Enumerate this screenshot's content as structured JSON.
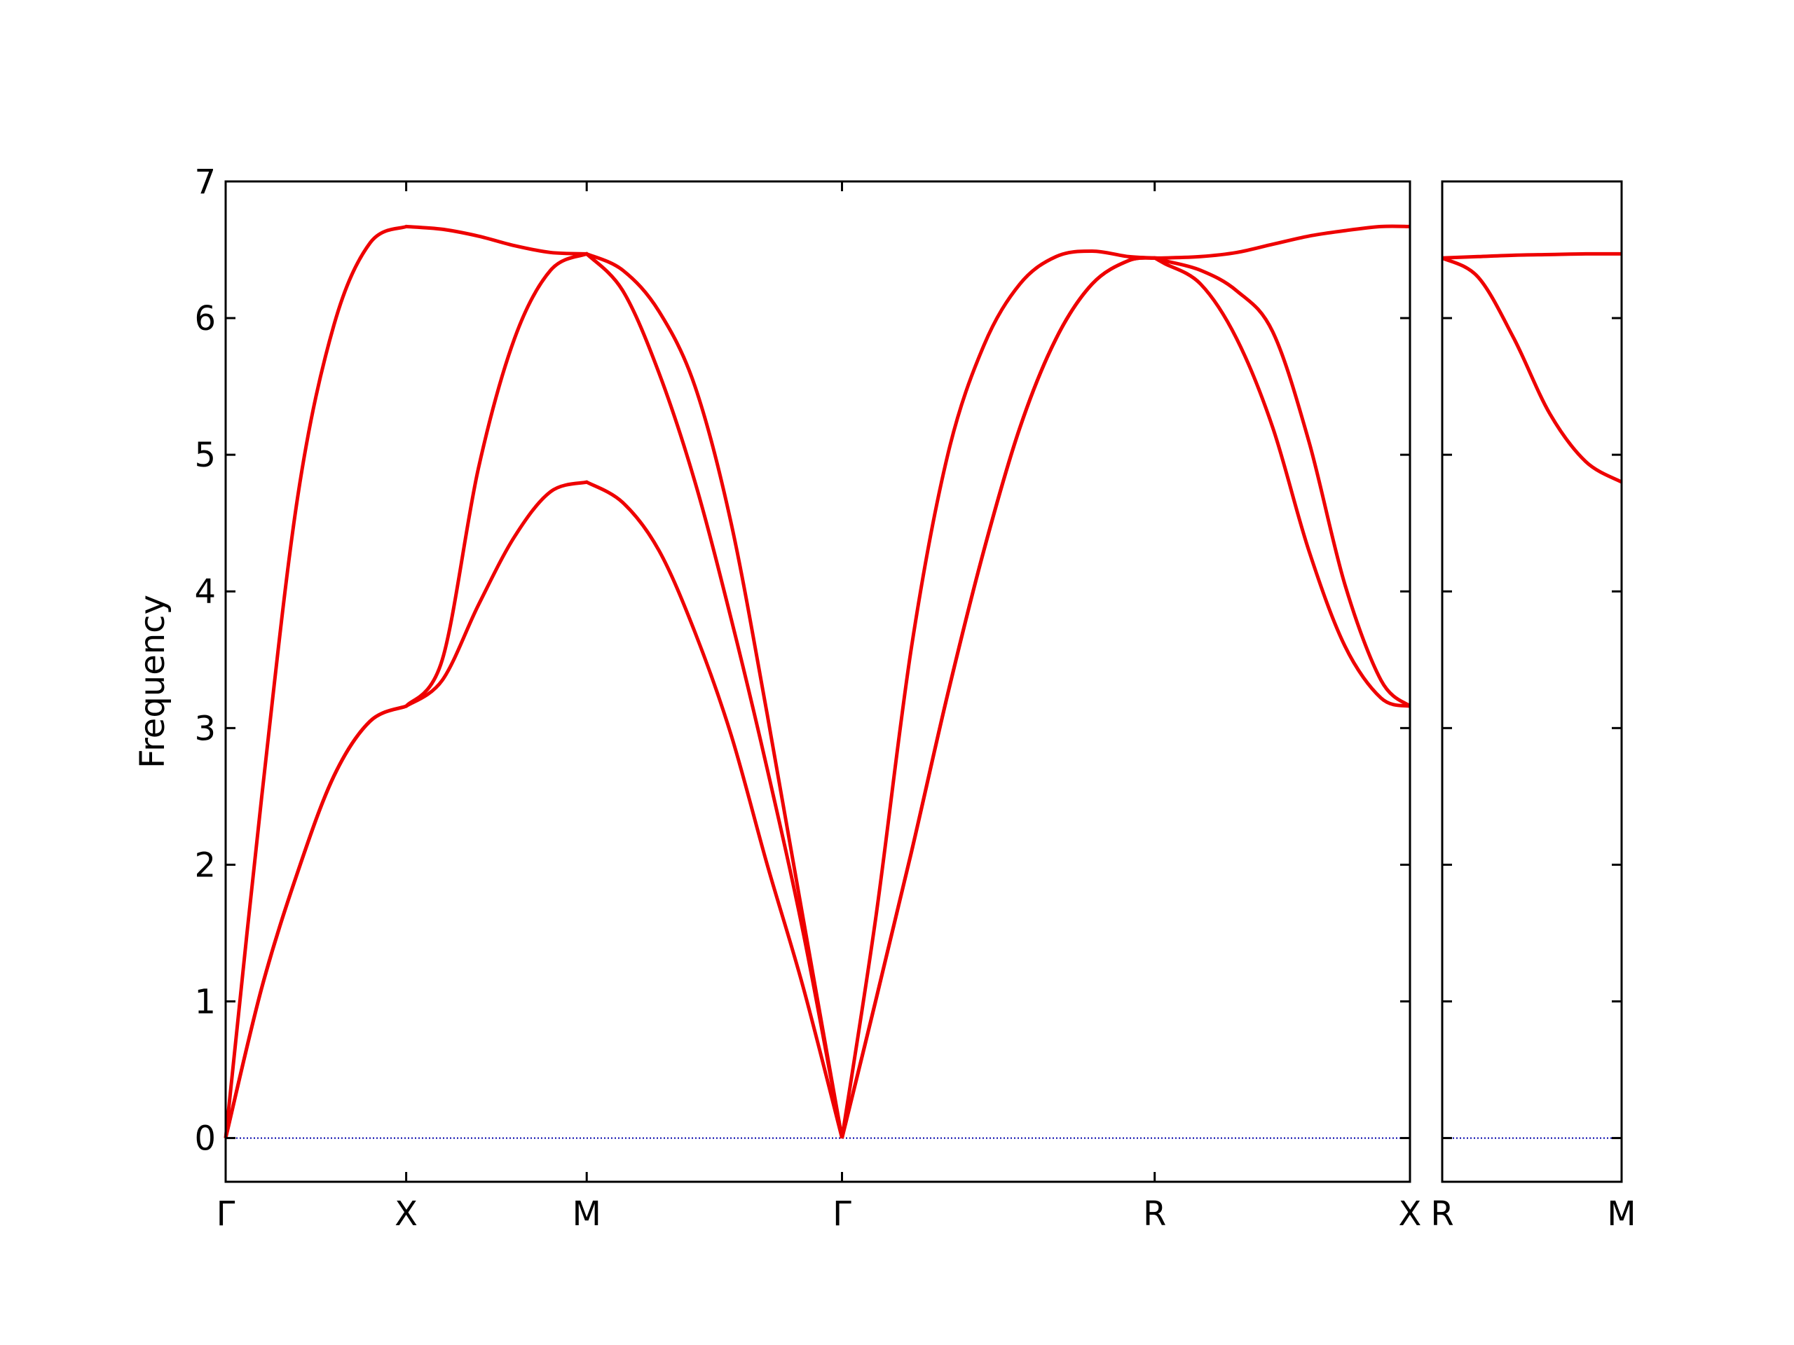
{
  "chart_data": [
    {
      "type": "line",
      "ylabel": "Frequency",
      "x": [
        0,
        0.1,
        0.2,
        0.3,
        0.4,
        0.5,
        0.6,
        0.7,
        0.8,
        0.9,
        1.0,
        1.1,
        1.2,
        1.3,
        1.4,
        1.5,
        1.6,
        1.7071,
        1.8,
        1.9,
        2.0,
        2.1,
        2.2,
        2.3,
        2.4,
        2.5,
        2.5731,
        2.6,
        2.7,
        2.8,
        2.9,
        3.0,
        3.1,
        3.2,
        3.2802
      ],
      "series": [
        {
          "color": "#ee0000",
          "values": [
            0,
            1.1,
            1.95,
            2.65,
            3.05,
            3.16,
            3.35,
            3.9,
            4.4,
            4.73,
            4.8,
            4.65,
            4.3,
            3.7,
            2.95,
            2.0,
            1.1,
            0,
            1.0,
            2.1,
            3.25,
            4.3,
            5.2,
            5.85,
            6.25,
            6.42,
            6.44,
            6.4,
            6.25,
            5.85,
            5.2,
            4.3,
            3.6,
            3.22,
            3.16
          ]
        },
        {
          "color": "#ee0000",
          "values": [
            0,
            1.1,
            1.95,
            2.65,
            3.05,
            3.16,
            3.5,
            4.9,
            5.85,
            6.35,
            6.47,
            6.2,
            5.6,
            4.8,
            3.8,
            2.7,
            1.5,
            0,
            1.0,
            2.1,
            3.25,
            4.3,
            5.2,
            5.85,
            6.25,
            6.42,
            6.44,
            6.42,
            6.35,
            6.2,
            5.9,
            5.1,
            4.05,
            3.35,
            3.16
          ]
        },
        {
          "color": "#ee0000",
          "values": [
            0,
            2.5,
            4.7,
            5.95,
            6.55,
            6.67,
            6.65,
            6.6,
            6.53,
            6.48,
            6.47,
            6.35,
            6.05,
            5.5,
            4.5,
            3.1,
            1.6,
            0,
            1.6,
            3.6,
            5.0,
            5.8,
            6.25,
            6.45,
            6.49,
            6.45,
            6.44,
            6.44,
            6.45,
            6.48,
            6.54,
            6.6,
            6.64,
            6.67,
            6.67
          ]
        }
      ],
      "hlines": [
        {
          "value": 0,
          "color": "#0000aa"
        }
      ],
      "xlim": [
        0,
        3.2802
      ],
      "xticks": [
        {
          "value": 0,
          "label": "Γ"
        },
        {
          "value": 0.5,
          "label": "X"
        },
        {
          "value": 1.0,
          "label": "M"
        },
        {
          "value": 1.7071,
          "label": "Γ"
        },
        {
          "value": 2.5731,
          "label": "R"
        },
        {
          "value": 3.2802,
          "label": "X"
        }
      ],
      "ylim": [
        -0.32,
        7
      ],
      "yticks": [
        0,
        1,
        2,
        3,
        4,
        5,
        6,
        7
      ]
    },
    {
      "type": "line",
      "x": [
        0,
        0.1,
        0.2,
        0.3,
        0.4,
        0.5
      ],
      "series": [
        {
          "color": "#ee0000",
          "values": [
            6.44,
            6.3,
            5.85,
            5.3,
            4.95,
            4.8
          ]
        },
        {
          "color": "#ee0000",
          "values": [
            6.44,
            6.45,
            6.46,
            6.465,
            6.47,
            6.47
          ]
        }
      ],
      "hlines": [
        {
          "value": 0,
          "color": "#0000aa"
        }
      ],
      "xlim": [
        0,
        0.5
      ],
      "xticks": [
        {
          "value": 0,
          "label": "R"
        },
        {
          "value": 0.5,
          "label": "M"
        }
      ],
      "ylim": [
        -0.32,
        7
      ],
      "yticks": [
        0,
        1,
        2,
        3,
        4,
        5,
        6,
        7
      ]
    }
  ]
}
